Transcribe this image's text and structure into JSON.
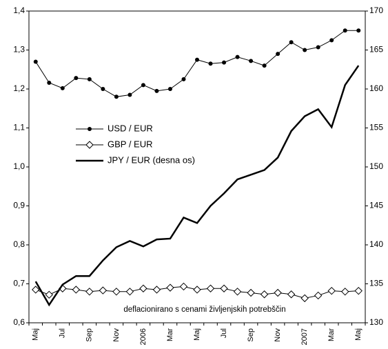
{
  "chart_data": {
    "type": "line",
    "categories": [
      "Maj",
      null,
      "Jul",
      null,
      "Sep",
      null,
      "Nov",
      null,
      "2006",
      null,
      "Mar",
      null,
      "Maj",
      null,
      "Jul",
      null,
      "Sep",
      null,
      "Nov",
      null,
      "2007",
      null,
      "Mar",
      null,
      "Maj"
    ],
    "series": [
      {
        "name": "USD / EUR",
        "color": "#000000",
        "marker": "circle",
        "values": [
          1.27,
          1.216,
          1.202,
          1.228,
          1.225,
          1.2,
          1.18,
          1.185,
          1.21,
          1.195,
          1.2,
          1.225,
          1.275,
          1.265,
          1.268,
          1.282,
          1.272,
          1.26,
          1.29,
          1.32,
          1.3,
          1.307,
          1.325,
          1.35,
          1.35
        ]
      },
      {
        "name": "GBP / EUR",
        "color": "#000000",
        "marker": "diamond",
        "values": [
          0.685,
          0.672,
          0.688,
          0.685,
          0.68,
          0.683,
          0.68,
          0.68,
          0.688,
          0.685,
          0.69,
          0.693,
          0.685,
          0.688,
          0.688,
          0.68,
          0.677,
          0.673,
          0.677,
          0.673,
          0.663,
          0.67,
          0.682,
          0.68,
          0.682
        ]
      },
      {
        "name": "JPY / EUR (desna os)",
        "color": "#000000",
        "axis": "y2",
        "values": [
          135.3,
          132.3,
          134.9,
          136.0,
          136.0,
          138.0,
          139.7,
          140.5,
          139.8,
          140.7,
          140.8,
          143.5,
          142.8,
          145.0,
          146.6,
          148.4,
          149.0,
          149.6,
          151.2,
          154.6,
          156.5,
          157.4,
          155.1,
          160.5,
          163.0
        ]
      }
    ],
    "ylim": [
      0.6,
      1.4
    ],
    "yticks": [
      {
        "value": 0.6,
        "label": "0,6"
      },
      {
        "value": 0.7,
        "label": "0,7"
      },
      {
        "value": 0.8,
        "label": "0,8"
      },
      {
        "value": 0.9,
        "label": "0,9"
      },
      {
        "value": 1.0,
        "label": "1,0"
      },
      {
        "value": 1.1,
        "label": "1,1"
      },
      {
        "value": 1.2,
        "label": "1,2"
      },
      {
        "value": 1.3,
        "label": "1,3"
      },
      {
        "value": 1.4,
        "label": "1,4"
      }
    ],
    "y2lim": [
      130,
      170
    ],
    "y2ticks": [
      130,
      135,
      140,
      145,
      150,
      155,
      160,
      165,
      170
    ],
    "annotation": "deflacionirano s cenami življenjskih potrebščin",
    "grid": false
  }
}
